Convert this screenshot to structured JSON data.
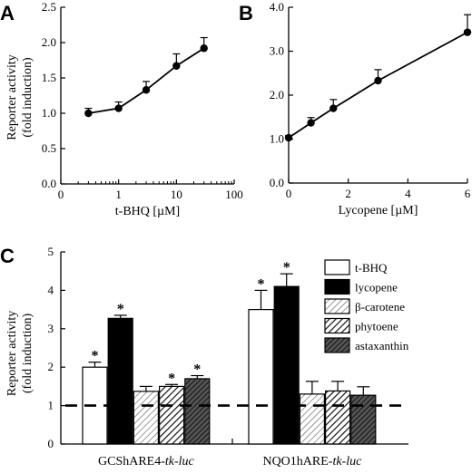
{
  "chart_data": [
    {
      "panel": "A",
      "type": "line",
      "xscale": "log",
      "xlabel": "t-BHQ [µM]",
      "ylabel": [
        "Reporter activity",
        "(fold  induction)"
      ],
      "xlim": [
        0.1,
        100
      ],
      "ylim": [
        0,
        2.5
      ],
      "xticks": [
        "0",
        "1",
        "10",
        "100"
      ],
      "yticks": [
        "0.0",
        "0.5",
        "1.0",
        "1.5",
        "2.0",
        "2.5"
      ],
      "x": [
        0.3,
        1,
        3,
        10,
        30
      ],
      "y": [
        1.0,
        1.07,
        1.33,
        1.67,
        1.92
      ],
      "err": [
        0.07,
        0.09,
        0.12,
        0.17,
        0.15
      ]
    },
    {
      "panel": "B",
      "type": "line",
      "xscale": "linear",
      "xlabel": "Lycopene [µM]",
      "xlim": [
        0,
        6
      ],
      "ylim": [
        0,
        4
      ],
      "xticks": [
        "0",
        "2",
        "4",
        "6"
      ],
      "yticks": [
        "0.0",
        "1.0",
        "2.0",
        "3.0",
        "4.0"
      ],
      "x": [
        0,
        0.75,
        1.5,
        3,
        6
      ],
      "y": [
        1.03,
        1.37,
        1.7,
        2.33,
        3.43
      ],
      "err": [
        0.05,
        0.12,
        0.2,
        0.25,
        0.4
      ]
    },
    {
      "panel": "C",
      "type": "bar",
      "ylabel": [
        "Reporter activity",
        "(fold  induction)"
      ],
      "ylim": [
        0,
        5
      ],
      "yticks": [
        "0",
        "1",
        "2",
        "3",
        "4",
        "5"
      ],
      "reference_line": 1,
      "groups": [
        "GCShARE4-",
        "NQO1hARE-"
      ],
      "group_suffix": "tk-luc",
      "series": [
        {
          "name": "t-BHQ",
          "values": [
            2.0,
            3.5
          ],
          "err": [
            0.13,
            0.5
          ],
          "sig": [
            true,
            true
          ]
        },
        {
          "name": "lycopene",
          "values": [
            3.27,
            4.1
          ],
          "err": [
            0.08,
            0.33
          ],
          "sig": [
            true,
            true
          ]
        },
        {
          "name": "β-carotene",
          "values": [
            1.37,
            1.3
          ],
          "err": [
            0.13,
            0.33
          ],
          "sig": [
            false,
            false
          ]
        },
        {
          "name": "phytoene",
          "values": [
            1.5,
            1.38
          ],
          "err": [
            0.05,
            0.25
          ],
          "sig": [
            true,
            false
          ]
        },
        {
          "name": "astaxanthin",
          "values": [
            1.7,
            1.27
          ],
          "err": [
            0.08,
            0.22
          ],
          "sig": [
            true,
            false
          ]
        }
      ],
      "significance_mark": "*"
    }
  ],
  "panels": [
    "A",
    "B",
    "C"
  ]
}
